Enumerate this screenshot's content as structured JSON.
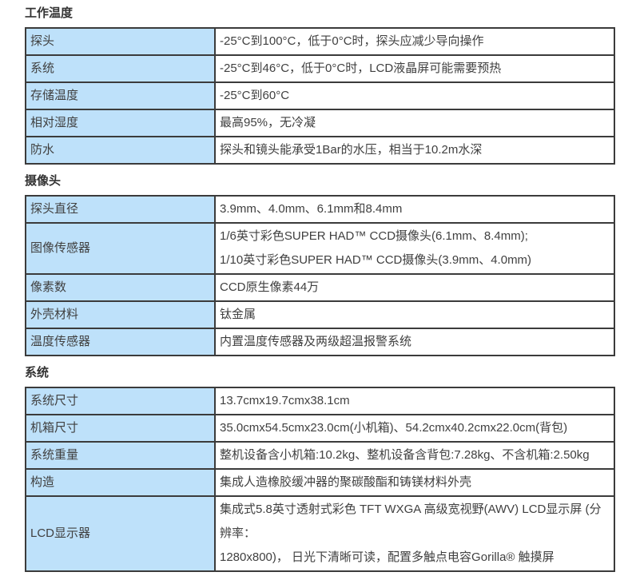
{
  "colors": {
    "label_cell_bg": "#bee1fa",
    "table_border": "#3b3b3b",
    "text": "#404040",
    "page_bg": "#ffffff"
  },
  "sections": [
    {
      "title": "工作温度",
      "rows": [
        {
          "label": "探头",
          "value": "-25°C到100°C，低于0°C时，探头应减少导向操作"
        },
        {
          "label": "系统",
          "value": "-25°C到46°C，低于0°C时，LCD液晶屏可能需要预热"
        },
        {
          "label": "存储温度",
          "value": "-25°C到60°C"
        },
        {
          "label": "相对湿度",
          "value": "最高95%，无冷凝"
        },
        {
          "label": "防水",
          "value": "探头和镜头能承受1Bar的水压，相当于10.2m水深"
        }
      ]
    },
    {
      "title": "摄像头",
      "rows": [
        {
          "label": "探头直径",
          "value": "3.9mm、4.0mm、6.1mm和8.4mm"
        },
        {
          "label": "图像传感器",
          "value": "1/6英寸彩色SUPER HAD™ CCD摄像头(6.1mm、8.4mm);\n1/10英寸彩色SUPER HAD™ CCD摄像头(3.9mm、4.0mm)"
        },
        {
          "label": "像素数",
          "value": "CCD原生像素44万"
        },
        {
          "label": "外壳材料",
          "value": "钛金属"
        },
        {
          "label": "温度传感器",
          "value": "内置温度传感器及两级超温报警系统"
        }
      ]
    },
    {
      "title": "系统",
      "rows": [
        {
          "label": "系统尺寸",
          "value": "13.7cmx19.7cmx38.1cm"
        },
        {
          "label": "机箱尺寸",
          "value": "35.0cmx54.5cmx23.0cm(小机箱)、54.2cmx40.2cmx22.0cm(背包)"
        },
        {
          "label": "系统重量",
          "value": "整机设备含小机箱:10.2kg、整机设备含背包:7.28kg、不含机箱:2.50kg"
        },
        {
          "label": "构造",
          "value": "集成人造橡胶缓冲器的聚碳酸酯和铸镁材料外壳"
        },
        {
          "label": "LCD显示器",
          "value": "集成式5.8英寸透射式彩色 TFT WXGA 高级宽视野(AWV) LCD显示屏 (分辨率：\n1280x800)， 日光下清晰可读，配置多触点电容Gorilla® 触摸屏"
        }
      ]
    }
  ]
}
